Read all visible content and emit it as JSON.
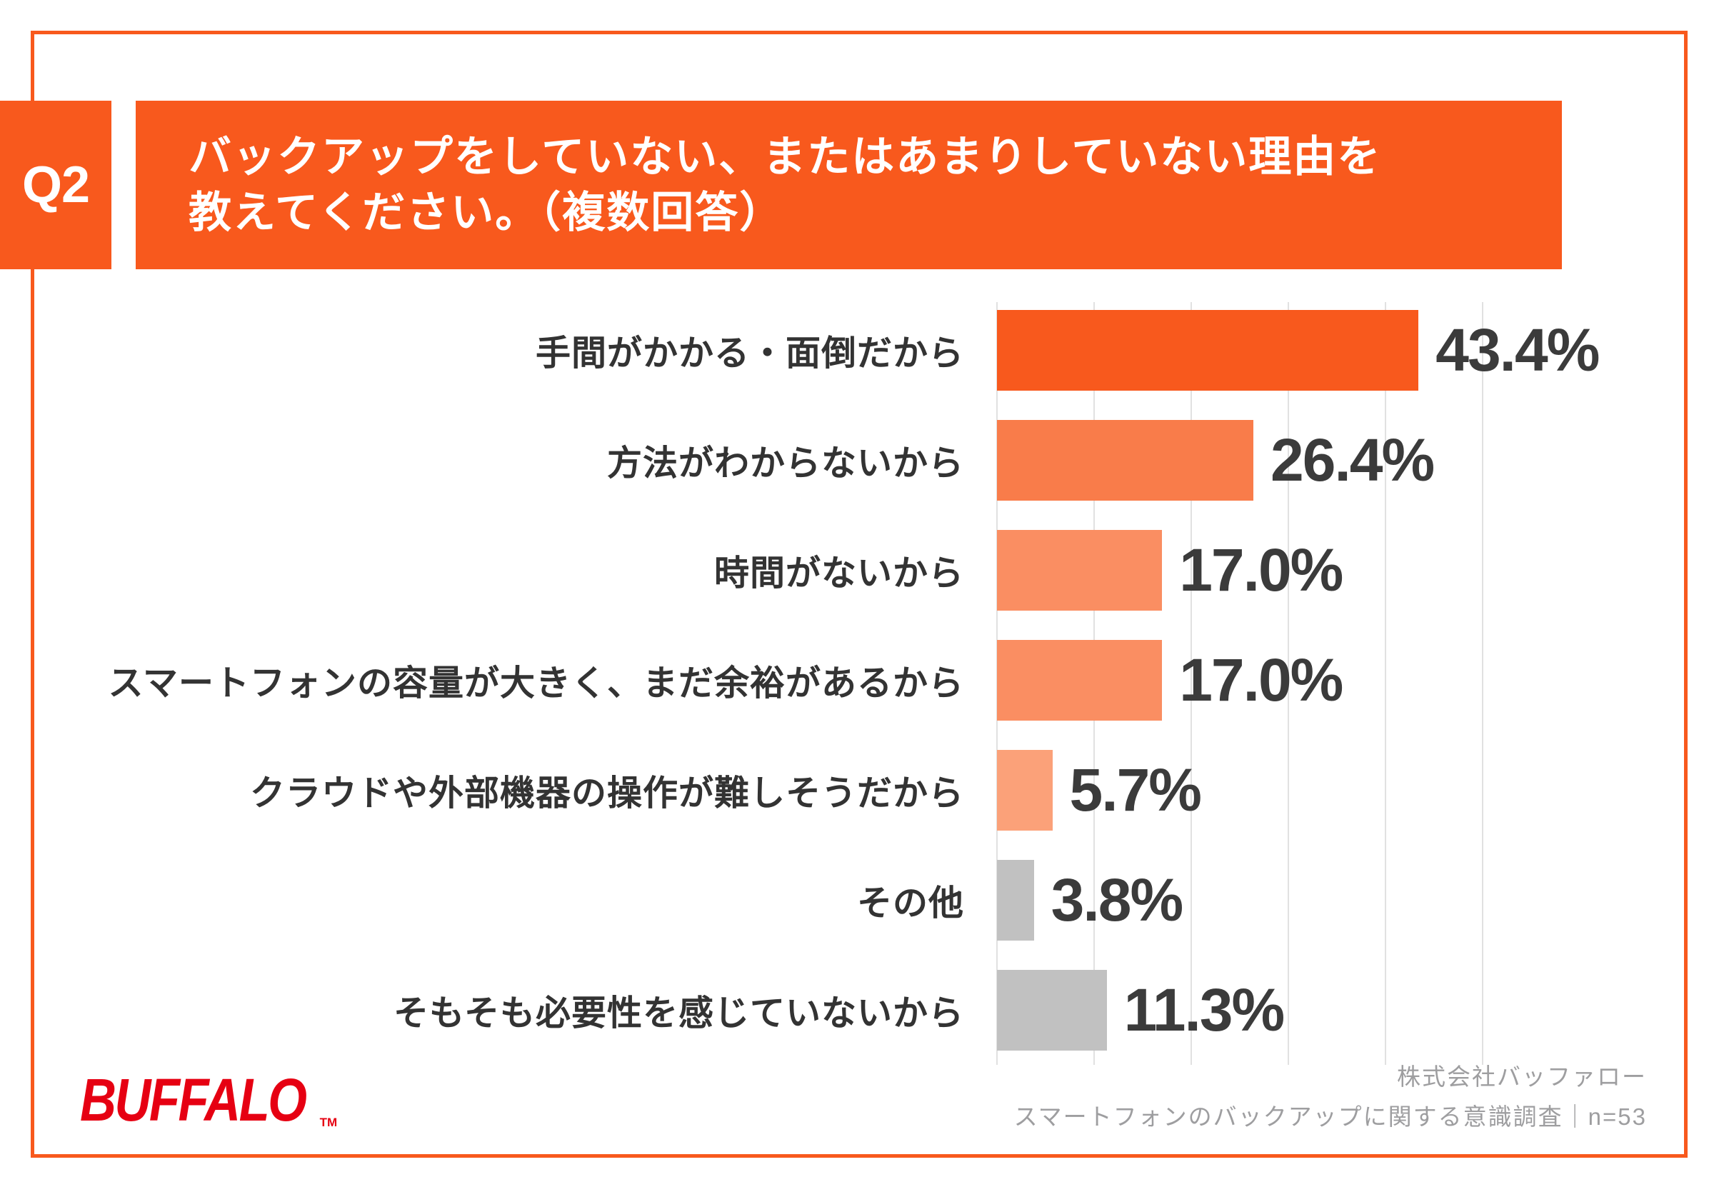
{
  "header": {
    "q_label": "Q2",
    "question_line1": "バックアップをしていない、またはあまりしていない理由を",
    "question_line2": "教えてください。（複数回答）"
  },
  "chart_data": {
    "type": "bar",
    "orientation": "horizontal",
    "unit": "%",
    "categories": [
      "手間がかかる・面倒だから",
      "方法がわからないから",
      "時間がないから",
      "スマートフォンの容量が大きく、まだ余裕があるから",
      "クラウドや外部機器の操作が難しそうだから",
      "その他",
      "そもそも必要性を感じていないから"
    ],
    "values": [
      43.4,
      26.4,
      17.0,
      17.0,
      5.7,
      3.8,
      11.3
    ],
    "value_labels": [
      "43.4%",
      "26.4%",
      "17.0%",
      "17.0%",
      "5.7%",
      "3.8%",
      "11.3%"
    ],
    "bar_colors": [
      "#F8591D",
      "#F97C4A",
      "#FA8E62",
      "#FA8E62",
      "#FBA179",
      "#C1C1C1",
      "#C1C1C1"
    ],
    "gridline_percents": [
      0,
      10,
      20,
      30,
      40,
      50
    ],
    "xlim": [
      0,
      70
    ],
    "grid": true,
    "legend": false,
    "title": ""
  },
  "footer": {
    "logo_text": "BUFFALO",
    "logo_tm": "TM",
    "credit_line1": "株式会社バッファロー",
    "credit_line2": "スマートフォンのバックアップに関する意識調査｜n=53"
  },
  "colors": {
    "primary_orange": "#F8591D",
    "logo_red": "#E60012",
    "gridline": "#E1E1E1",
    "value_text": "#3B3B3B",
    "category_text": "#333333",
    "credit_text": "#9E9EA0"
  }
}
